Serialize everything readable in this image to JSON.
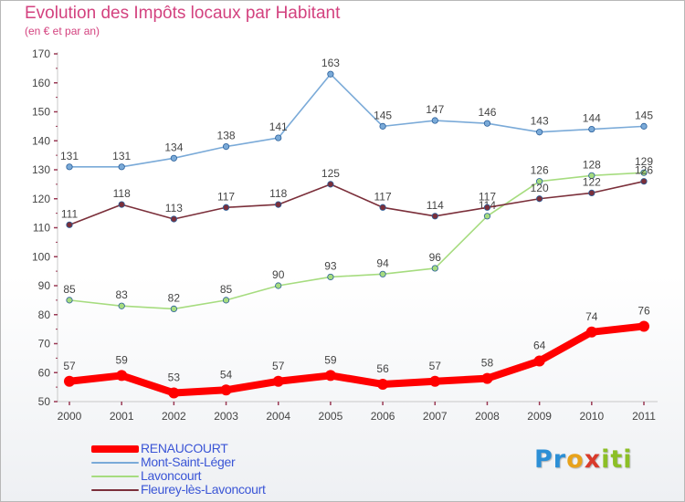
{
  "header": {
    "title": "Evolution des Impôts locaux par Habitant",
    "subtitle": "(en € et par an)"
  },
  "logo": {
    "text": "Proxiti",
    "letters": [
      {
        "ch": "P",
        "color": "#2c8fd6"
      },
      {
        "ch": "r",
        "color": "#2c8fd6"
      },
      {
        "ch": "o",
        "color": "#e8a21b"
      },
      {
        "ch": "x",
        "color": "#d93a2b"
      },
      {
        "ch": "i",
        "color": "#8cbf26"
      },
      {
        "ch": "t",
        "color": "#8cbf26"
      },
      {
        "ch": "i",
        "color": "#8cbf26"
      }
    ]
  },
  "chart_data": {
    "type": "line",
    "title": "Evolution des Impôts locaux par Habitant",
    "subtitle": "(en € et par an)",
    "xlabel": "",
    "ylabel": "",
    "ylim": [
      50,
      170
    ],
    "yticks": [
      50,
      60,
      70,
      80,
      90,
      100,
      110,
      120,
      130,
      140,
      150,
      160,
      170
    ],
    "grid": false,
    "legend_position": "bottom-left",
    "categories": [
      "2000",
      "2001",
      "2002",
      "2003",
      "2004",
      "2005",
      "2006",
      "2007",
      "2008",
      "2009",
      "2010",
      "2011"
    ],
    "series": [
      {
        "name": "RENAUCOURT",
        "color": "#ff0000",
        "label_color": "#3a55d6",
        "emphasis": true,
        "values": [
          57,
          59,
          53,
          54,
          57,
          59,
          56,
          57,
          58,
          64,
          74,
          76
        ]
      },
      {
        "name": "Mont-Saint-Léger",
        "color": "#7aaad8",
        "label_color": "#3a55d6",
        "emphasis": false,
        "values": [
          131,
          131,
          134,
          138,
          141,
          163,
          145,
          147,
          146,
          143,
          144,
          145
        ]
      },
      {
        "name": "Lavoncourt",
        "color": "#a6dc7f",
        "label_color": "#3a55d6",
        "emphasis": false,
        "values": [
          85,
          83,
          82,
          85,
          90,
          93,
          94,
          96,
          114,
          126,
          128,
          129
        ]
      },
      {
        "name": "Fleurey-lès-Lavoncourt",
        "color": "#7b2f3a",
        "label_color": "#3a55d6",
        "emphasis": false,
        "values": [
          111,
          118,
          113,
          117,
          118,
          125,
          117,
          114,
          117,
          120,
          122,
          126
        ]
      }
    ]
  }
}
